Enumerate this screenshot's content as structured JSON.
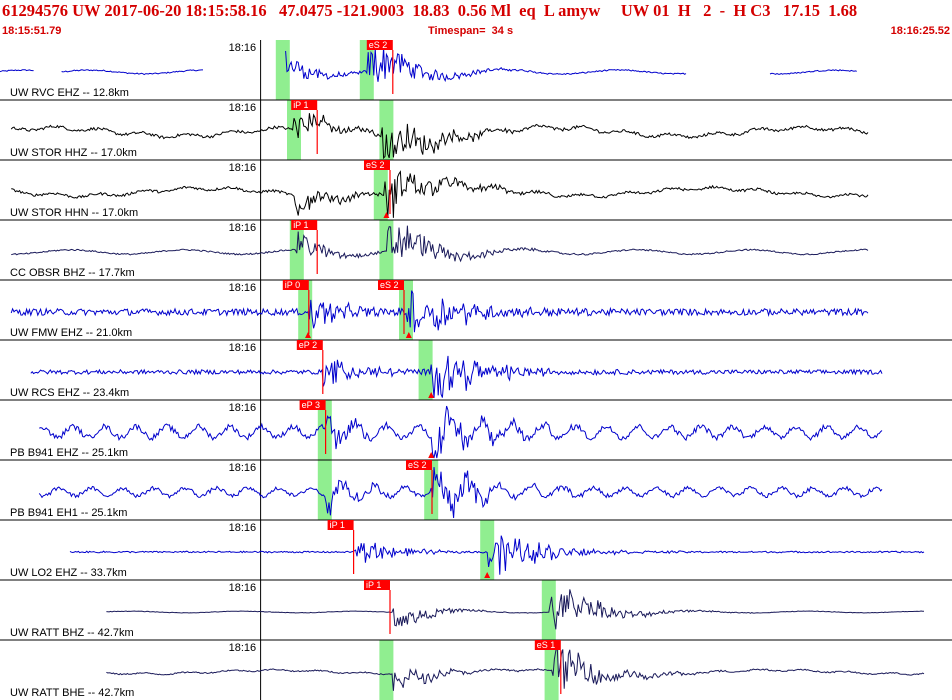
{
  "header": {
    "title": "61294576 UW 2017-06-20 18:15:58.16   47.0475 -121.9003  18.83  0.56 Ml  eq  L amyw     UW 01  H   2  -  H C3   17.15  1.68",
    "start_time": "18:15:51.79",
    "timespan": "Timespan=  34 s",
    "end_time": "18:16:25.52"
  },
  "colors": {
    "header_text": "#d40000",
    "pick_flag": "#ff0000",
    "pick_window": "#90ee90",
    "trace_blue": "#0000cc",
    "trace_black": "#000000",
    "trace_navy": "#1a1a5a"
  },
  "chart_data": {
    "type": "line",
    "x_unit": "s",
    "xlim": [
      0,
      34
    ],
    "minute_mark_label": "18:16",
    "minute_mark_x": 8.2,
    "traces": [
      {
        "label": "UW RVC EHZ -- 12.8km",
        "color": "#0000cc",
        "amp": 0.12,
        "segments": [
          [
            0,
            1.2
          ],
          [
            2.2,
            7.3
          ],
          [
            10.2,
            24.5
          ],
          [
            27.5,
            30.6
          ]
        ],
        "p": 10.2,
        "s": 13.1,
        "picks": [
          {
            "t": 13.1,
            "label": "eS 2"
          }
        ],
        "windows": [
          10.1,
          13.1
        ],
        "tris": [],
        "noise": "smooth"
      },
      {
        "label": "UW STOR HHZ -- 17.0km",
        "color": "#000000",
        "amp": 0.22,
        "segments": [
          [
            0.4,
            31
          ]
        ],
        "p": 10.5,
        "s": 13.6,
        "picks": [
          {
            "t": 10.4,
            "label": "iP 1"
          }
        ],
        "windows": [
          10.5,
          13.8
        ],
        "tris": [],
        "noise": "wavy"
      },
      {
        "label": "UW STOR HHN -- 17.0km",
        "color": "#000000",
        "amp": 0.2,
        "segments": [
          [
            0.4,
            31
          ]
        ],
        "p": 10.5,
        "s": 13.7,
        "picks": [
          {
            "t": 13.0,
            "label": "eS 2"
          }
        ],
        "windows": [
          13.6
        ],
        "tris": [
          13.8
        ],
        "noise": "wavy"
      },
      {
        "label": "CC OBSR BHZ -- 17.7km",
        "color": "#1a1a5a",
        "amp": 0.14,
        "segments": [
          [
            0.4,
            31
          ]
        ],
        "p": 10.6,
        "s": 13.8,
        "picks": [
          {
            "t": 10.4,
            "label": "iP 1"
          }
        ],
        "windows": [
          10.6,
          13.8
        ],
        "tris": [],
        "noise": "smooth"
      },
      {
        "label": "UW FMW EHZ -- 21.0km",
        "color": "#0000cc",
        "amp": 0.18,
        "segments": [
          [
            0.4,
            31
          ]
        ],
        "p": 10.9,
        "s": 14.5,
        "picks": [
          {
            "t": 10.1,
            "label": "iP 0"
          },
          {
            "t": 13.5,
            "label": "eS 2"
          }
        ],
        "windows": [
          10.9,
          14.5
        ],
        "tris": [
          11.0,
          14.6
        ],
        "noise": "spiky"
      },
      {
        "label": "UW RCS EHZ -- 23.4km",
        "color": "#0000cc",
        "amp": 0.12,
        "segments": [
          [
            1.1,
            31.5
          ]
        ],
        "p": 11.5,
        "s": 15.3,
        "picks": [
          {
            "t": 10.6,
            "label": "eP 2"
          }
        ],
        "windows": [
          15.2
        ],
        "tris": [
          15.4
        ],
        "noise": "spiky"
      },
      {
        "label": "PB B941 EHZ -- 25.1km",
        "color": "#0000cc",
        "amp": 0.35,
        "segments": [
          [
            1.4,
            31.5
          ]
        ],
        "p": 11.6,
        "s": 15.4,
        "picks": [
          {
            "t": 10.7,
            "label": "eP 3"
          }
        ],
        "windows": [
          11.6
        ],
        "tris": [
          15.4
        ],
        "noise": "bumpy"
      },
      {
        "label": "PB B941 EH1 -- 25.1km",
        "color": "#0000cc",
        "amp": 0.25,
        "segments": [
          [
            1.4,
            31.5
          ]
        ],
        "p": 11.6,
        "s": 15.4,
        "picks": [
          {
            "t": 14.5,
            "label": "eS 2"
          }
        ],
        "windows": [
          11.6,
          15.4
        ],
        "tris": [],
        "noise": "bumpy"
      },
      {
        "label": "UW LO2 EHZ -- 33.7km",
        "color": "#0000cc",
        "amp": 0.06,
        "segments": [
          [
            2.5,
            33
          ]
        ],
        "p": 12.6,
        "s": 17.4,
        "picks": [
          {
            "t": 11.7,
            "label": "iP 1"
          }
        ],
        "windows": [
          17.4
        ],
        "tris": [
          17.4
        ],
        "noise": "flat"
      },
      {
        "label": "UW RATT BHZ -- 42.7km",
        "color": "#1a1a5a",
        "amp": 0.05,
        "segments": [
          [
            3.8,
            33
          ]
        ],
        "p": 14.0,
        "s": 19.6,
        "picks": [
          {
            "t": 13.0,
            "label": "iP 1"
          }
        ],
        "windows": [
          19.6
        ],
        "tris": [],
        "noise": "smooth"
      },
      {
        "label": "UW RATT BHE -- 42.7km",
        "color": "#1a1a5a",
        "amp": 0.1,
        "segments": [
          [
            3.8,
            33
          ]
        ],
        "p": 14.0,
        "s": 19.7,
        "picks": [
          {
            "t": 19.1,
            "label": "eS 1"
          }
        ],
        "windows": [
          13.8,
          19.7
        ],
        "tris": [],
        "noise": "wavy"
      }
    ]
  }
}
